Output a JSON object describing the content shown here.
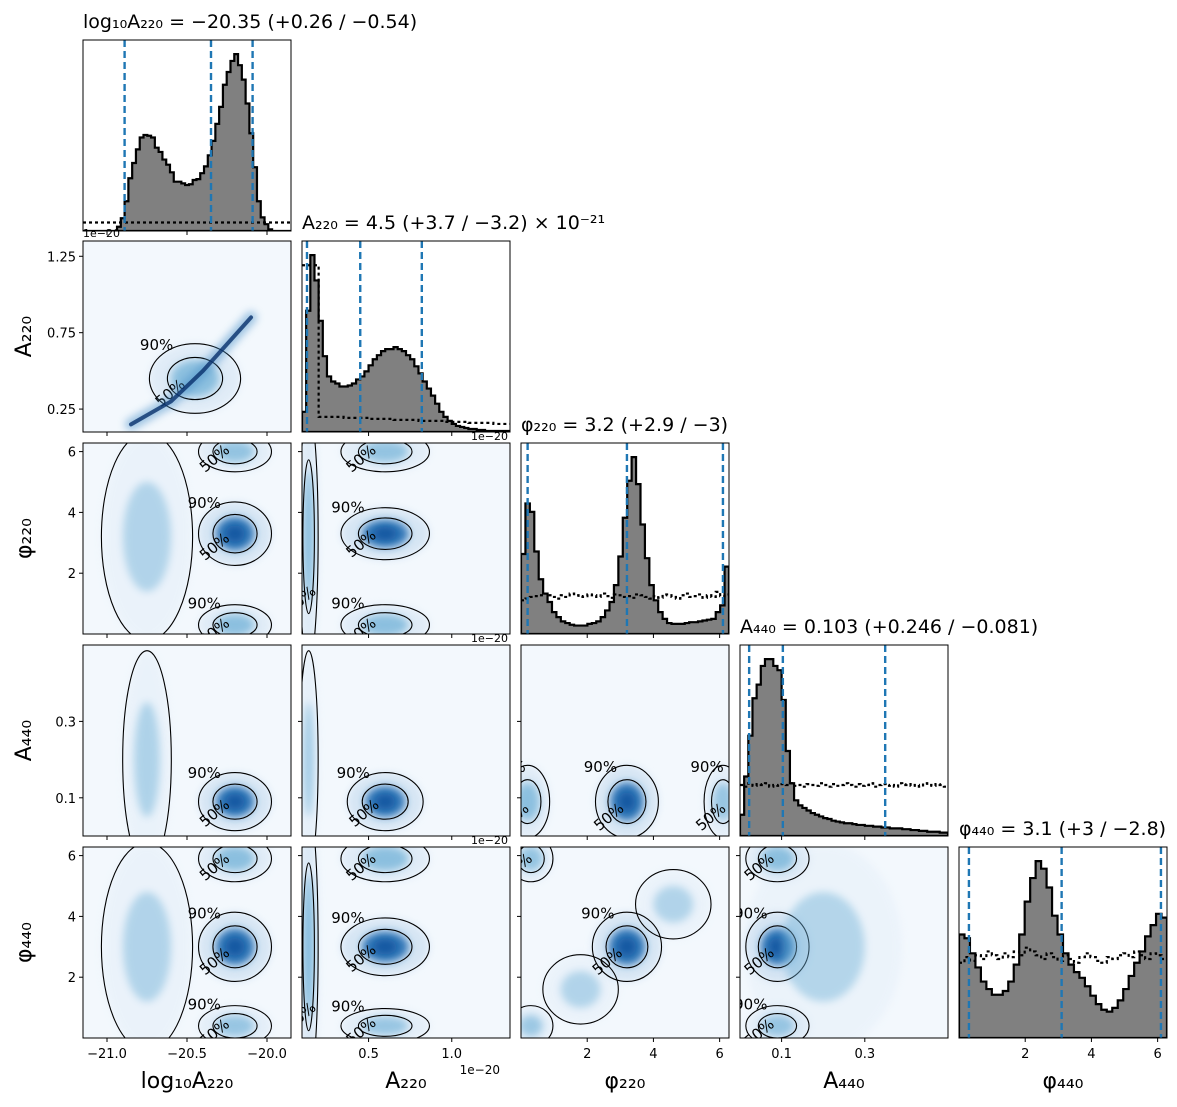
{
  "chart_data": {
    "type": "corner",
    "parameters": [
      {
        "key": "logA220",
        "axis_label": "log₁₀A₂₂₀",
        "title": "log₁₀A₂₂₀ = −20.35 (+0.26 / −0.54)",
        "range": [
          -21.15,
          -19.85
        ],
        "median": -20.35,
        "quantiles": [
          -20.89,
          -20.35,
          -20.09
        ],
        "offset_label": "",
        "ticks": [
          -21.0,
          -20.5,
          -20.0
        ],
        "tick_labels": [
          "−21.0",
          "−20.5",
          "−20.0"
        ]
      },
      {
        "key": "A220",
        "axis_label": "A₂₂₀",
        "title": "A₂₂₀ = 4.5 (+3.7 / −3.2) × 10⁻²¹",
        "range": [
          0.1,
          1.35
        ],
        "median": 0.45,
        "quantiles": [
          0.13,
          0.45,
          0.82
        ],
        "offset_label": "1e−20",
        "ticks": [
          0.25,
          0.75,
          1.25
        ],
        "tick_labels": [
          "0.25",
          "0.75",
          "1.25"
        ],
        "x_ticks": [
          0.5,
          1.0
        ],
        "x_tick_labels": [
          "0.5",
          "1.0"
        ]
      },
      {
        "key": "phi220",
        "axis_label": "φ₂₂₀",
        "title": "φ₂₂₀ = 3.2 (+2.9 / −3)",
        "range": [
          0.0,
          6.283
        ],
        "median": 3.2,
        "quantiles": [
          0.2,
          3.2,
          6.1
        ],
        "offset_label": "",
        "ticks": [
          2,
          4,
          6
        ],
        "tick_labels": [
          "2",
          "4",
          "6"
        ]
      },
      {
        "key": "A440",
        "axis_label": "A₄₄₀",
        "title": "A₄₄₀ = 0.103 (+0.246 / −0.081)",
        "range": [
          0.0,
          0.5
        ],
        "median": 0.103,
        "quantiles": [
          0.022,
          0.103,
          0.349
        ],
        "offset_label": "",
        "ticks": [
          0.1,
          0.3
        ],
        "tick_labels": [
          "0.1",
          "0.3"
        ]
      },
      {
        "key": "phi440",
        "axis_label": "φ₄₄₀",
        "title": "φ₄₄₀ = 3.1 (+3 / −2.8)",
        "range": [
          0.0,
          6.283
        ],
        "median": 3.1,
        "quantiles": [
          0.3,
          3.1,
          6.1
        ],
        "offset_label": "",
        "ticks": [
          2,
          4,
          6
        ],
        "tick_labels": [
          "2",
          "4",
          "6"
        ]
      }
    ],
    "histograms": [
      {
        "param": "logA220",
        "posterior": [
          0,
          0,
          0,
          0,
          0,
          0,
          0,
          0,
          0,
          5,
          15,
          35,
          62,
          80,
          96,
          110,
          113,
          112,
          110,
          98,
          93,
          84,
          78,
          69,
          58,
          58,
          56,
          54,
          55,
          60,
          61,
          68,
          76,
          89,
          106,
          126,
          146,
          172,
          187,
          200,
          208,
          195,
          178,
          150,
          115,
          75,
          35,
          16,
          8,
          2,
          0,
          0,
          0,
          0,
          0
        ],
        "prior": [
          10,
          10,
          10,
          10,
          10,
          10,
          10,
          10,
          10,
          10,
          10,
          10,
          10,
          10,
          10,
          10,
          10,
          10,
          10,
          10,
          10,
          10,
          10,
          10,
          10,
          10,
          10,
          10,
          10,
          10,
          10,
          10,
          10,
          10,
          10,
          10,
          10,
          10,
          10,
          10,
          10,
          10,
          10,
          10,
          10,
          10,
          10,
          10,
          10,
          10,
          10,
          10,
          10,
          10,
          10
        ]
      },
      {
        "param": "A220",
        "posterior": [
          20,
          120,
          175,
          150,
          110,
          75,
          55,
          50,
          48,
          45,
          45,
          46,
          48,
          52,
          55,
          60,
          66,
          72,
          76,
          80,
          82,
          82,
          84,
          82,
          80,
          76,
          72,
          65,
          58,
          50,
          43,
          36,
          28,
          20,
          15,
          11,
          8,
          6,
          5,
          4,
          3,
          3,
          2,
          2,
          1,
          1,
          1,
          1,
          1,
          1
        ],
        "prior": [
          165,
          165,
          165,
          165,
          15,
          15,
          15,
          15,
          15,
          15,
          14,
          14,
          14,
          14,
          14,
          14,
          13,
          13,
          13,
          13,
          13,
          13,
          12,
          12,
          12,
          12,
          12,
          12,
          11,
          11,
          11,
          11,
          11,
          11,
          10,
          10,
          10,
          10,
          10,
          10,
          9,
          9,
          9,
          9,
          9,
          9,
          8,
          8,
          8,
          8
        ]
      },
      {
        "param": "phi220",
        "posterior": [
          95,
          155,
          145,
          98,
          65,
          48,
          38,
          26,
          20,
          15,
          13,
          11,
          10,
          10,
          10,
          12,
          13,
          15,
          20,
          28,
          38,
          58,
          92,
          138,
          182,
          210,
          178,
          130,
          90,
          58,
          40,
          26,
          18,
          13,
          12,
          12,
          12,
          13,
          14,
          14,
          15,
          16,
          17,
          18,
          26,
          34,
          80
        ],
        "prior": [
          40,
          42,
          44,
          45,
          46,
          48,
          46,
          44,
          42,
          46,
          44,
          48,
          46,
          44,
          45,
          47,
          46,
          44,
          48,
          45,
          43,
          47,
          46,
          44,
          45,
          43,
          47,
          46,
          44,
          42,
          45,
          43,
          47,
          46,
          44,
          42,
          46,
          48,
          44,
          45,
          47,
          43,
          46,
          44,
          50,
          45,
          47
        ]
      },
      {
        "param": "A440",
        "posterior": [
          25,
          70,
          118,
          162,
          178,
          200,
          208,
          208,
          200,
          195,
          160,
          100,
          62,
          42,
          36,
          33,
          30,
          27,
          25,
          23,
          21,
          20,
          18,
          17,
          16,
          15,
          15,
          14,
          13,
          13,
          12,
          12,
          11,
          11,
          10,
          10,
          9,
          9,
          9,
          8,
          8,
          7,
          7,
          6,
          6,
          5,
          5,
          5,
          4,
          4
        ],
        "prior": [
          60,
          58,
          62,
          59,
          61,
          60,
          62,
          58,
          60,
          59,
          61,
          60,
          62,
          59,
          60,
          58,
          61,
          60,
          59,
          62,
          60,
          58,
          61,
          59,
          60,
          62,
          60,
          58,
          61,
          59,
          60,
          62,
          58,
          60,
          61,
          59,
          60,
          58,
          62,
          60,
          61,
          59,
          60,
          58,
          62,
          60,
          59,
          61,
          60,
          58
        ]
      },
      {
        "param": "phi440",
        "posterior": [
          110,
          106,
          90,
          75,
          60,
          52,
          46,
          46,
          50,
          60,
          78,
          110,
          145,
          170,
          188,
          180,
          160,
          130,
          110,
          90,
          78,
          70,
          64,
          55,
          45,
          36,
          30,
          28,
          32,
          40,
          52,
          66,
          80,
          92,
          108,
          120,
          132,
          128
        ],
        "prior": [
          80,
          86,
          82,
          88,
          84,
          92,
          88,
          84,
          90,
          86,
          92,
          88,
          96,
          92,
          88,
          84,
          90,
          86,
          82,
          88,
          84,
          80,
          86,
          90,
          86,
          82,
          80,
          86,
          84,
          88,
          90,
          86,
          92,
          88,
          84,
          90,
          88,
          84
        ]
      }
    ],
    "contour_levels": [
      "50%",
      "90%"
    ],
    "density_blobs": [
      {
        "x": "logA220",
        "y": "A220",
        "blobs": [
          [
            -20.45,
            0.45,
            0.15,
            0.12,
            0.6
          ]
        ],
        "ridge": [
          [
            -20.85,
            0.15
          ],
          [
            -20.6,
            0.3
          ],
          [
            -20.4,
            0.5
          ],
          [
            -20.1,
            0.85
          ]
        ]
      },
      {
        "x": "logA220",
        "y": "phi220",
        "blobs": [
          [
            -20.2,
            3.3,
            0.12,
            0.55,
            1.0
          ],
          [
            -20.2,
            0.3,
            0.12,
            0.35,
            0.6
          ],
          [
            -20.2,
            6.0,
            0.12,
            0.35,
            0.5
          ],
          [
            -20.75,
            3.2,
            0.15,
            1.8,
            0.15
          ]
        ]
      },
      {
        "x": "A220",
        "y": "phi220",
        "blobs": [
          [
            0.6,
            3.3,
            0.14,
            0.45,
            1.0
          ],
          [
            0.6,
            0.3,
            0.14,
            0.35,
            0.6
          ],
          [
            0.14,
            3.2,
            0.03,
            2.2,
            0.7
          ],
          [
            0.6,
            6.0,
            0.14,
            0.35,
            0.5
          ]
        ]
      },
      {
        "x": "logA220",
        "y": "A440",
        "blobs": [
          [
            -20.2,
            0.09,
            0.12,
            0.04,
            1.0
          ],
          [
            -20.75,
            0.2,
            0.08,
            0.15,
            0.18
          ]
        ]
      },
      {
        "x": "A220",
        "y": "A440",
        "blobs": [
          [
            0.6,
            0.09,
            0.12,
            0.04,
            1.0
          ],
          [
            0.14,
            0.2,
            0.03,
            0.15,
            0.35
          ]
        ]
      },
      {
        "x": "phi220",
        "y": "A440",
        "blobs": [
          [
            3.2,
            0.09,
            0.5,
            0.05,
            1.0
          ],
          [
            0.2,
            0.09,
            0.35,
            0.05,
            0.6
          ],
          [
            6.1,
            0.09,
            0.3,
            0.05,
            0.45
          ]
        ]
      },
      {
        "x": "logA220",
        "y": "phi440",
        "blobs": [
          [
            -20.2,
            3.0,
            0.12,
            0.6,
            1.0
          ],
          [
            -20.2,
            5.9,
            0.12,
            0.4,
            0.6
          ],
          [
            -20.2,
            0.4,
            0.12,
            0.35,
            0.45
          ],
          [
            -20.75,
            3.0,
            0.15,
            1.8,
            0.15
          ]
        ]
      },
      {
        "x": "A220",
        "y": "phi440",
        "blobs": [
          [
            0.6,
            3.0,
            0.14,
            0.5,
            1.0
          ],
          [
            0.6,
            5.9,
            0.14,
            0.4,
            0.6
          ],
          [
            0.6,
            0.4,
            0.14,
            0.3,
            0.45
          ],
          [
            0.14,
            3.0,
            0.03,
            2.4,
            0.8
          ]
        ]
      },
      {
        "x": "phi220",
        "y": "phi440",
        "blobs": [
          [
            3.2,
            3.0,
            0.55,
            0.6,
            1.0
          ],
          [
            0.3,
            5.9,
            0.35,
            0.4,
            0.5
          ],
          [
            0.3,
            0.4,
            0.35,
            0.35,
            0.4
          ],
          [
            1.8,
            1.6,
            0.6,
            0.6,
            0.15
          ],
          [
            4.6,
            4.4,
            0.6,
            0.6,
            0.15
          ]
        ]
      },
      {
        "x": "A440",
        "y": "phi440",
        "blobs": [
          [
            0.09,
            3.0,
            0.04,
            0.6,
            1.0
          ],
          [
            0.09,
            5.9,
            0.04,
            0.4,
            0.6
          ],
          [
            0.09,
            0.4,
            0.04,
            0.35,
            0.45
          ],
          [
            0.2,
            3.0,
            0.1,
            1.8,
            0.12
          ]
        ]
      }
    ]
  }
}
